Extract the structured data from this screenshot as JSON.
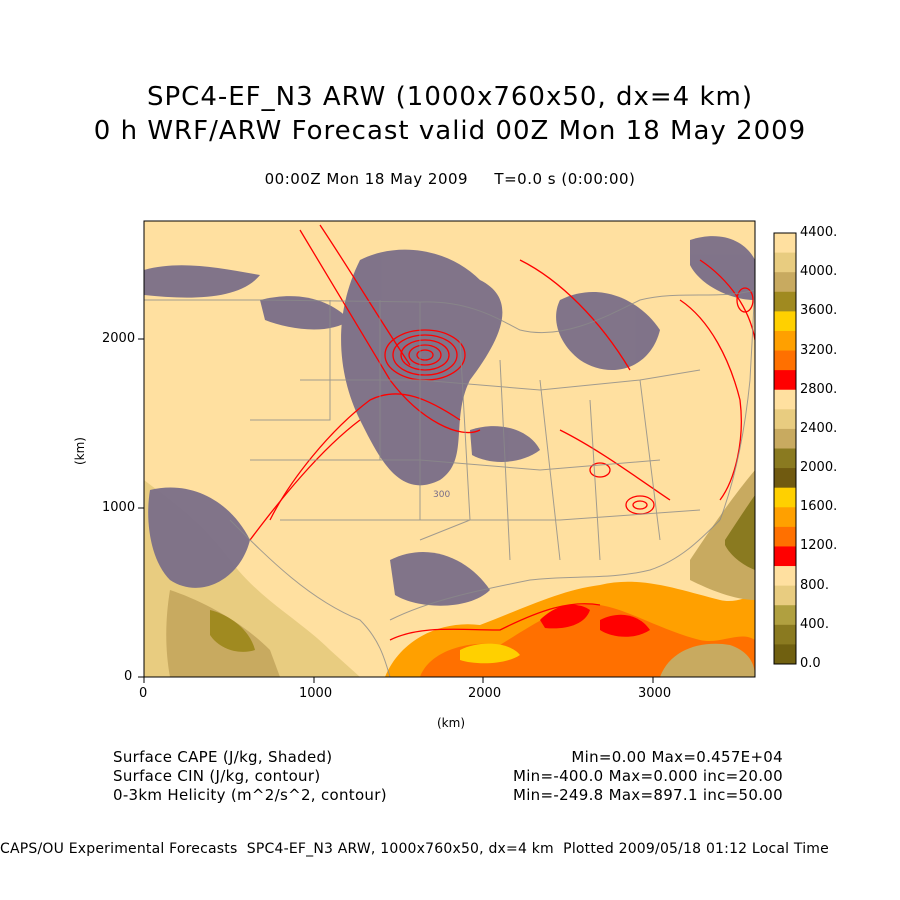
{
  "header": {
    "line1": "SPC4-EF_N3 ARW (1000x760x50, dx=4 km)",
    "line2": "0 h WRF/ARW Forecast valid 00Z Mon 18 May 2009",
    "line3": "00:00Z Mon 18 May 2009     T=0.0 s (0:00:00)"
  },
  "axes": {
    "x_label": "(km)",
    "y_label": "(km)",
    "x_ticks": [
      "0",
      "1000",
      "2000",
      "3000"
    ],
    "y_ticks": [
      "0",
      "1000",
      "2000"
    ],
    "x_range_km": [
      0,
      3600
    ],
    "y_range_km": [
      0,
      2700
    ],
    "contour_label": "300"
  },
  "colorbar": {
    "labels": [
      "4400.",
      "4000.",
      "3600.",
      "3200.",
      "2800.",
      "2400.",
      "2000.",
      "1600.",
      "1200.",
      "800.",
      "400.",
      "0.0"
    ],
    "colors": [
      "#ffe0a0",
      "#e8cc80",
      "#c8aa60",
      "#a08a20",
      "#ffd000",
      "#ffa000",
      "#ff7000",
      "#ff0000",
      "#ffe0a0",
      "#e8cc80",
      "#c8aa60",
      "#8a7a20",
      "#705a10",
      "#ffd000",
      "#ffa000",
      "#ff7000",
      "#ff0000",
      "#ffe0a0",
      "#e8cc80",
      "#b0a040",
      "#8a7a20",
      "#706010"
    ]
  },
  "fields": {
    "cape": {
      "label": "Surface CAPE (J/kg, Shaded)",
      "stats": "Min=0.00 Max=0.457E+04"
    },
    "cin": {
      "label": "Surface CIN (J/kg, contour)",
      "stats": "Min=-400.0 Max=0.000 inc=20.00"
    },
    "helicity": {
      "label": "0-3km Helicity (m^2/s^2, contour)",
      "stats": "Min=-249.8 Max=897.1 inc=50.00"
    }
  },
  "footer": "CAPS/OU Experimental Forecasts  SPC4-EF_N3 ARW, 1000x760x50, dx=4 km  Plotted 2009/05/18 01:12 Local Time",
  "palette": {
    "base": "#ffe0a0",
    "cin": "#7a6e88",
    "helicity": "#ff0000",
    "border": "#8a8a8a"
  }
}
